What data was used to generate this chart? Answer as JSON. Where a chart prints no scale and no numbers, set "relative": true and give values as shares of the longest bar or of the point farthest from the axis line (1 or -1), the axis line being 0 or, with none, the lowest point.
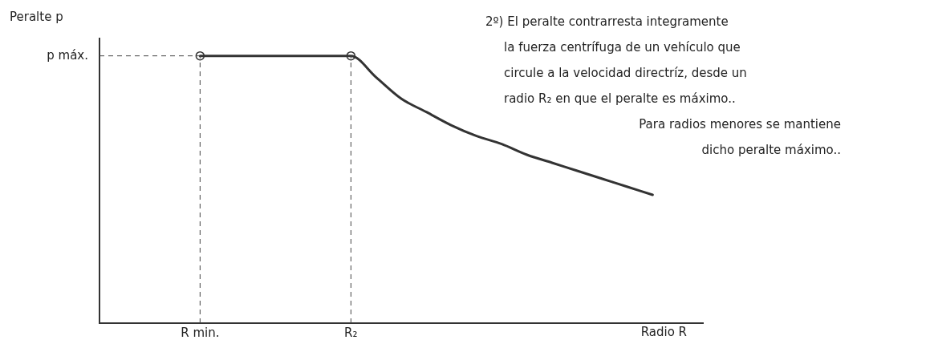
{
  "chart_data": {
    "type": "line",
    "relative": true,
    "ylabel": "Peralte p",
    "xlabel": "Radio R",
    "grid": false,
    "legend": false,
    "categories": [
      null,
      null,
      null,
      null,
      "R min.",
      null,
      null,
      null,
      null,
      null,
      "R₂",
      null,
      null,
      null,
      null,
      null,
      null,
      null,
      null,
      null,
      null,
      null,
      null,
      null,
      null
    ],
    "series": [
      {
        "color": "#333333",
        "line_style": "solid",
        "marker": "none",
        "values": [
          null,
          null,
          null,
          null,
          1,
          1,
          1,
          1,
          1,
          1,
          1,
          0.92,
          0.84,
          0.79,
          0.74,
          0.7,
          0.67,
          0.63,
          0.6,
          0.57,
          0.54,
          0.51,
          0.48,
          null,
          null
        ]
      },
      {
        "type": "scatter",
        "color": "#333333",
        "marker": "circle",
        "x": [
          "R min.",
          "R₂"
        ],
        "values": [
          1,
          1
        ]
      }
    ],
    "ref_lines": [
      {
        "axis": "y",
        "value": 1,
        "label": "p máx.",
        "line_style": "dashed"
      },
      {
        "axis": "x",
        "value": "R min.",
        "line_style": "dashed"
      },
      {
        "axis": "x",
        "value": "R₂",
        "line_style": "dashed"
      }
    ],
    "annotations": [
      "2º) El peralte contrarresta integramente",
      "la fuerza centrífuga de un vehículo que",
      "circule a la velocidad directríz, desde un",
      "radio R₂ en que el peralte es máximo..",
      "Para radios menores se mantiene",
      "dicho peralte máximo.."
    ]
  }
}
